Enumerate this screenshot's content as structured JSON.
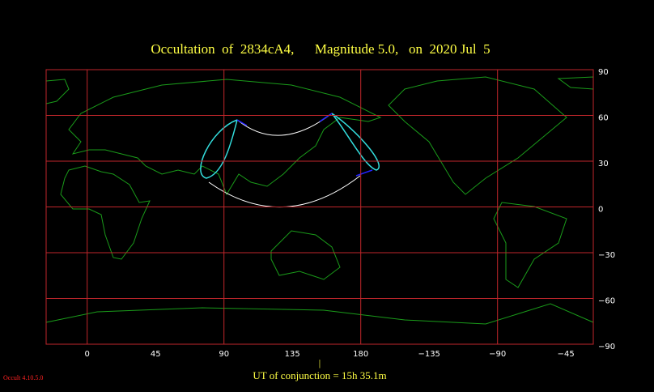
{
  "chart_data": {
    "type": "map",
    "title": "Occultation  of  2834cA4,      Magnitude 5.0,   on  2020 Jul  5",
    "annotation": "UT of conjunction = 15h 35.1m",
    "marker": "|",
    "footer": "Occult 4.10.5.0",
    "xlim": [
      -27,
      333
    ],
    "xticks": [
      0,
      45,
      90,
      135,
      180,
      {
        "value": 225,
        "label": "−135"
      },
      {
        "value": 270,
        "label": "−90"
      },
      {
        "value": 315,
        "label": "−45"
      }
    ],
    "ylim": [
      -90,
      90
    ],
    "yticks": [
      90,
      60,
      30,
      0,
      {
        "value": -30,
        "label": "−30"
      },
      {
        "value": -60,
        "label": "−60"
      },
      {
        "value": -90,
        "label": "−90"
      }
    ],
    "grid": true
  }
}
